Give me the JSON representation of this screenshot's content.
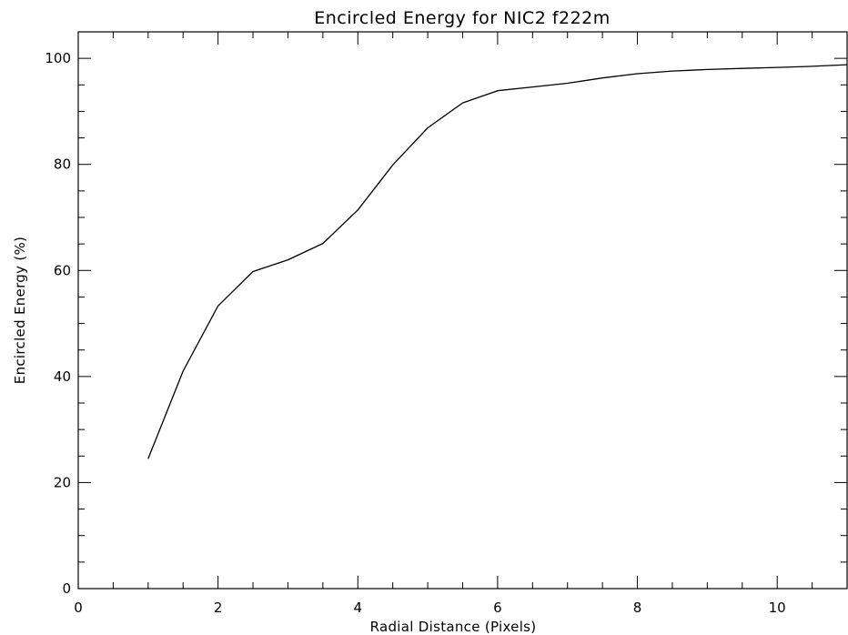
{
  "chart_data": {
    "type": "line",
    "title": "Encircled Energy for NIC2 f222m",
    "xlabel": "Radial Distance (Pixels)",
    "ylabel": "Encircled Energy (%)",
    "xlim": [
      0,
      11
    ],
    "ylim": [
      0,
      105
    ],
    "x_major_ticks": [
      0,
      2,
      4,
      6,
      8,
      10
    ],
    "x_minor_ticks": [
      0.5,
      1,
      1.5,
      2.5,
      3,
      3.5,
      4.5,
      5,
      5.5,
      6.5,
      7,
      7.5,
      8.5,
      9,
      9.5,
      10.5
    ],
    "y_major_ticks": [
      0,
      20,
      40,
      60,
      80,
      100
    ],
    "y_minor_ticks": [
      5,
      10,
      15,
      25,
      30,
      35,
      45,
      50,
      55,
      65,
      70,
      75,
      85,
      90,
      95
    ],
    "x_tick_labels": [
      "0",
      "2",
      "4",
      "6",
      "8",
      "10"
    ],
    "y_tick_labels": [
      "0",
      "20",
      "40",
      "60",
      "80",
      "100"
    ],
    "grid": false,
    "legend": "none",
    "series": [
      {
        "x": [
          1.0,
          1.5,
          2.0,
          2.5,
          3.0,
          3.5,
          4.0,
          4.5,
          5.0,
          5.5,
          6.0,
          6.5,
          7.0,
          7.5,
          8.0,
          8.5,
          9.0,
          9.5,
          10.0,
          10.5,
          11.0
        ],
        "y": [
          24.5,
          41.0,
          53.3,
          59.8,
          62.0,
          65.1,
          71.4,
          79.9,
          86.9,
          91.6,
          93.9,
          94.6,
          95.3,
          96.3,
          97.1,
          97.6,
          97.9,
          98.1,
          98.3,
          98.5,
          98.8
        ],
        "color": "#000000"
      }
    ]
  }
}
